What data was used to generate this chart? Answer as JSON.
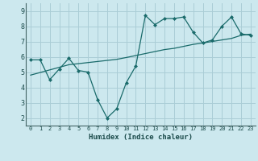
{
  "title": "",
  "xlabel": "Humidex (Indice chaleur)",
  "ylabel": "",
  "background_color": "#cce8ee",
  "grid_color": "#aacdd6",
  "line_color": "#1a6b6b",
  "x_data": [
    0,
    1,
    2,
    3,
    4,
    5,
    6,
    7,
    8,
    9,
    10,
    11,
    12,
    13,
    14,
    15,
    16,
    17,
    18,
    19,
    20,
    21,
    22,
    23
  ],
  "y_main": [
    5.8,
    5.8,
    4.5,
    5.2,
    5.9,
    5.1,
    5.0,
    3.2,
    2.0,
    2.6,
    4.3,
    5.4,
    8.7,
    8.1,
    8.5,
    8.5,
    8.6,
    7.6,
    6.9,
    7.1,
    8.0,
    8.6,
    7.5,
    7.4
  ],
  "y_trend": [
    4.8,
    4.97,
    5.14,
    5.31,
    5.48,
    5.55,
    5.62,
    5.69,
    5.76,
    5.83,
    5.95,
    6.08,
    6.21,
    6.34,
    6.47,
    6.55,
    6.68,
    6.81,
    6.9,
    7.0,
    7.1,
    7.2,
    7.4,
    7.48
  ],
  "ylim": [
    1.5,
    9.5
  ],
  "xlim": [
    -0.5,
    23.5
  ],
  "yticks": [
    2,
    3,
    4,
    5,
    6,
    7,
    8,
    9
  ],
  "xticks": [
    0,
    1,
    2,
    3,
    4,
    5,
    6,
    7,
    8,
    9,
    10,
    11,
    12,
    13,
    14,
    15,
    16,
    17,
    18,
    19,
    20,
    21,
    22,
    23
  ]
}
